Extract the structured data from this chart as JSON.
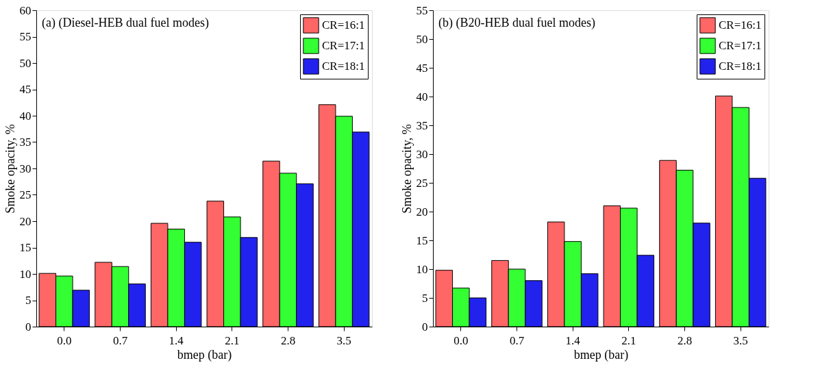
{
  "chart_data": [
    {
      "type": "bar",
      "annotations": [
        "(a)  (Diesel-HEB dual fuel modes)"
      ],
      "xlabel": "bmep (bar)",
      "ylabel": "Smoke opacity, %",
      "categories": [
        "0.0",
        "0.7",
        "1.4",
        "2.1",
        "2.8",
        "3.5"
      ],
      "series": [
        {
          "name": "CR=16:1",
          "color": "#ff6666",
          "values": [
            10.1,
            12.2,
            19.6,
            23.8,
            31.4,
            42.1
          ]
        },
        {
          "name": "CR=17:1",
          "color": "#33ff33",
          "values": [
            9.6,
            11.4,
            18.5,
            20.8,
            29.1,
            39.9
          ]
        },
        {
          "name": "CR=18:1",
          "color": "#2222ee",
          "values": [
            6.9,
            8.1,
            16.0,
            16.9,
            27.1,
            36.9
          ]
        }
      ],
      "ylim": [
        0,
        60
      ],
      "yticks": [
        0,
        5,
        10,
        15,
        20,
        25,
        30,
        35,
        40,
        45,
        50,
        55,
        60
      ],
      "grid": false,
      "legend": "top right"
    },
    {
      "type": "bar",
      "annotations": [
        "(b) (B20-HEB dual fuel modes)"
      ],
      "xlabel": "bmep (bar)",
      "ylabel": "Smoke opacity, %",
      "categories": [
        "0.0",
        "0.7",
        "1.4",
        "2.1",
        "2.8",
        "3.5"
      ],
      "series": [
        {
          "name": "CR=16:1",
          "color": "#ff6666",
          "values": [
            9.8,
            11.5,
            18.2,
            21.0,
            28.9,
            40.1
          ]
        },
        {
          "name": "CR=17:1",
          "color": "#33ff33",
          "values": [
            6.7,
            10.0,
            14.8,
            20.6,
            27.2,
            38.1
          ]
        },
        {
          "name": "CR=18:1",
          "color": "#2222ee",
          "values": [
            5.0,
            8.0,
            9.2,
            12.4,
            18.0,
            25.8
          ]
        }
      ],
      "ylim": [
        0,
        55
      ],
      "yticks": [
        0,
        5,
        10,
        15,
        20,
        25,
        30,
        35,
        40,
        45,
        50,
        55
      ],
      "grid": false,
      "legend": "top right"
    }
  ]
}
